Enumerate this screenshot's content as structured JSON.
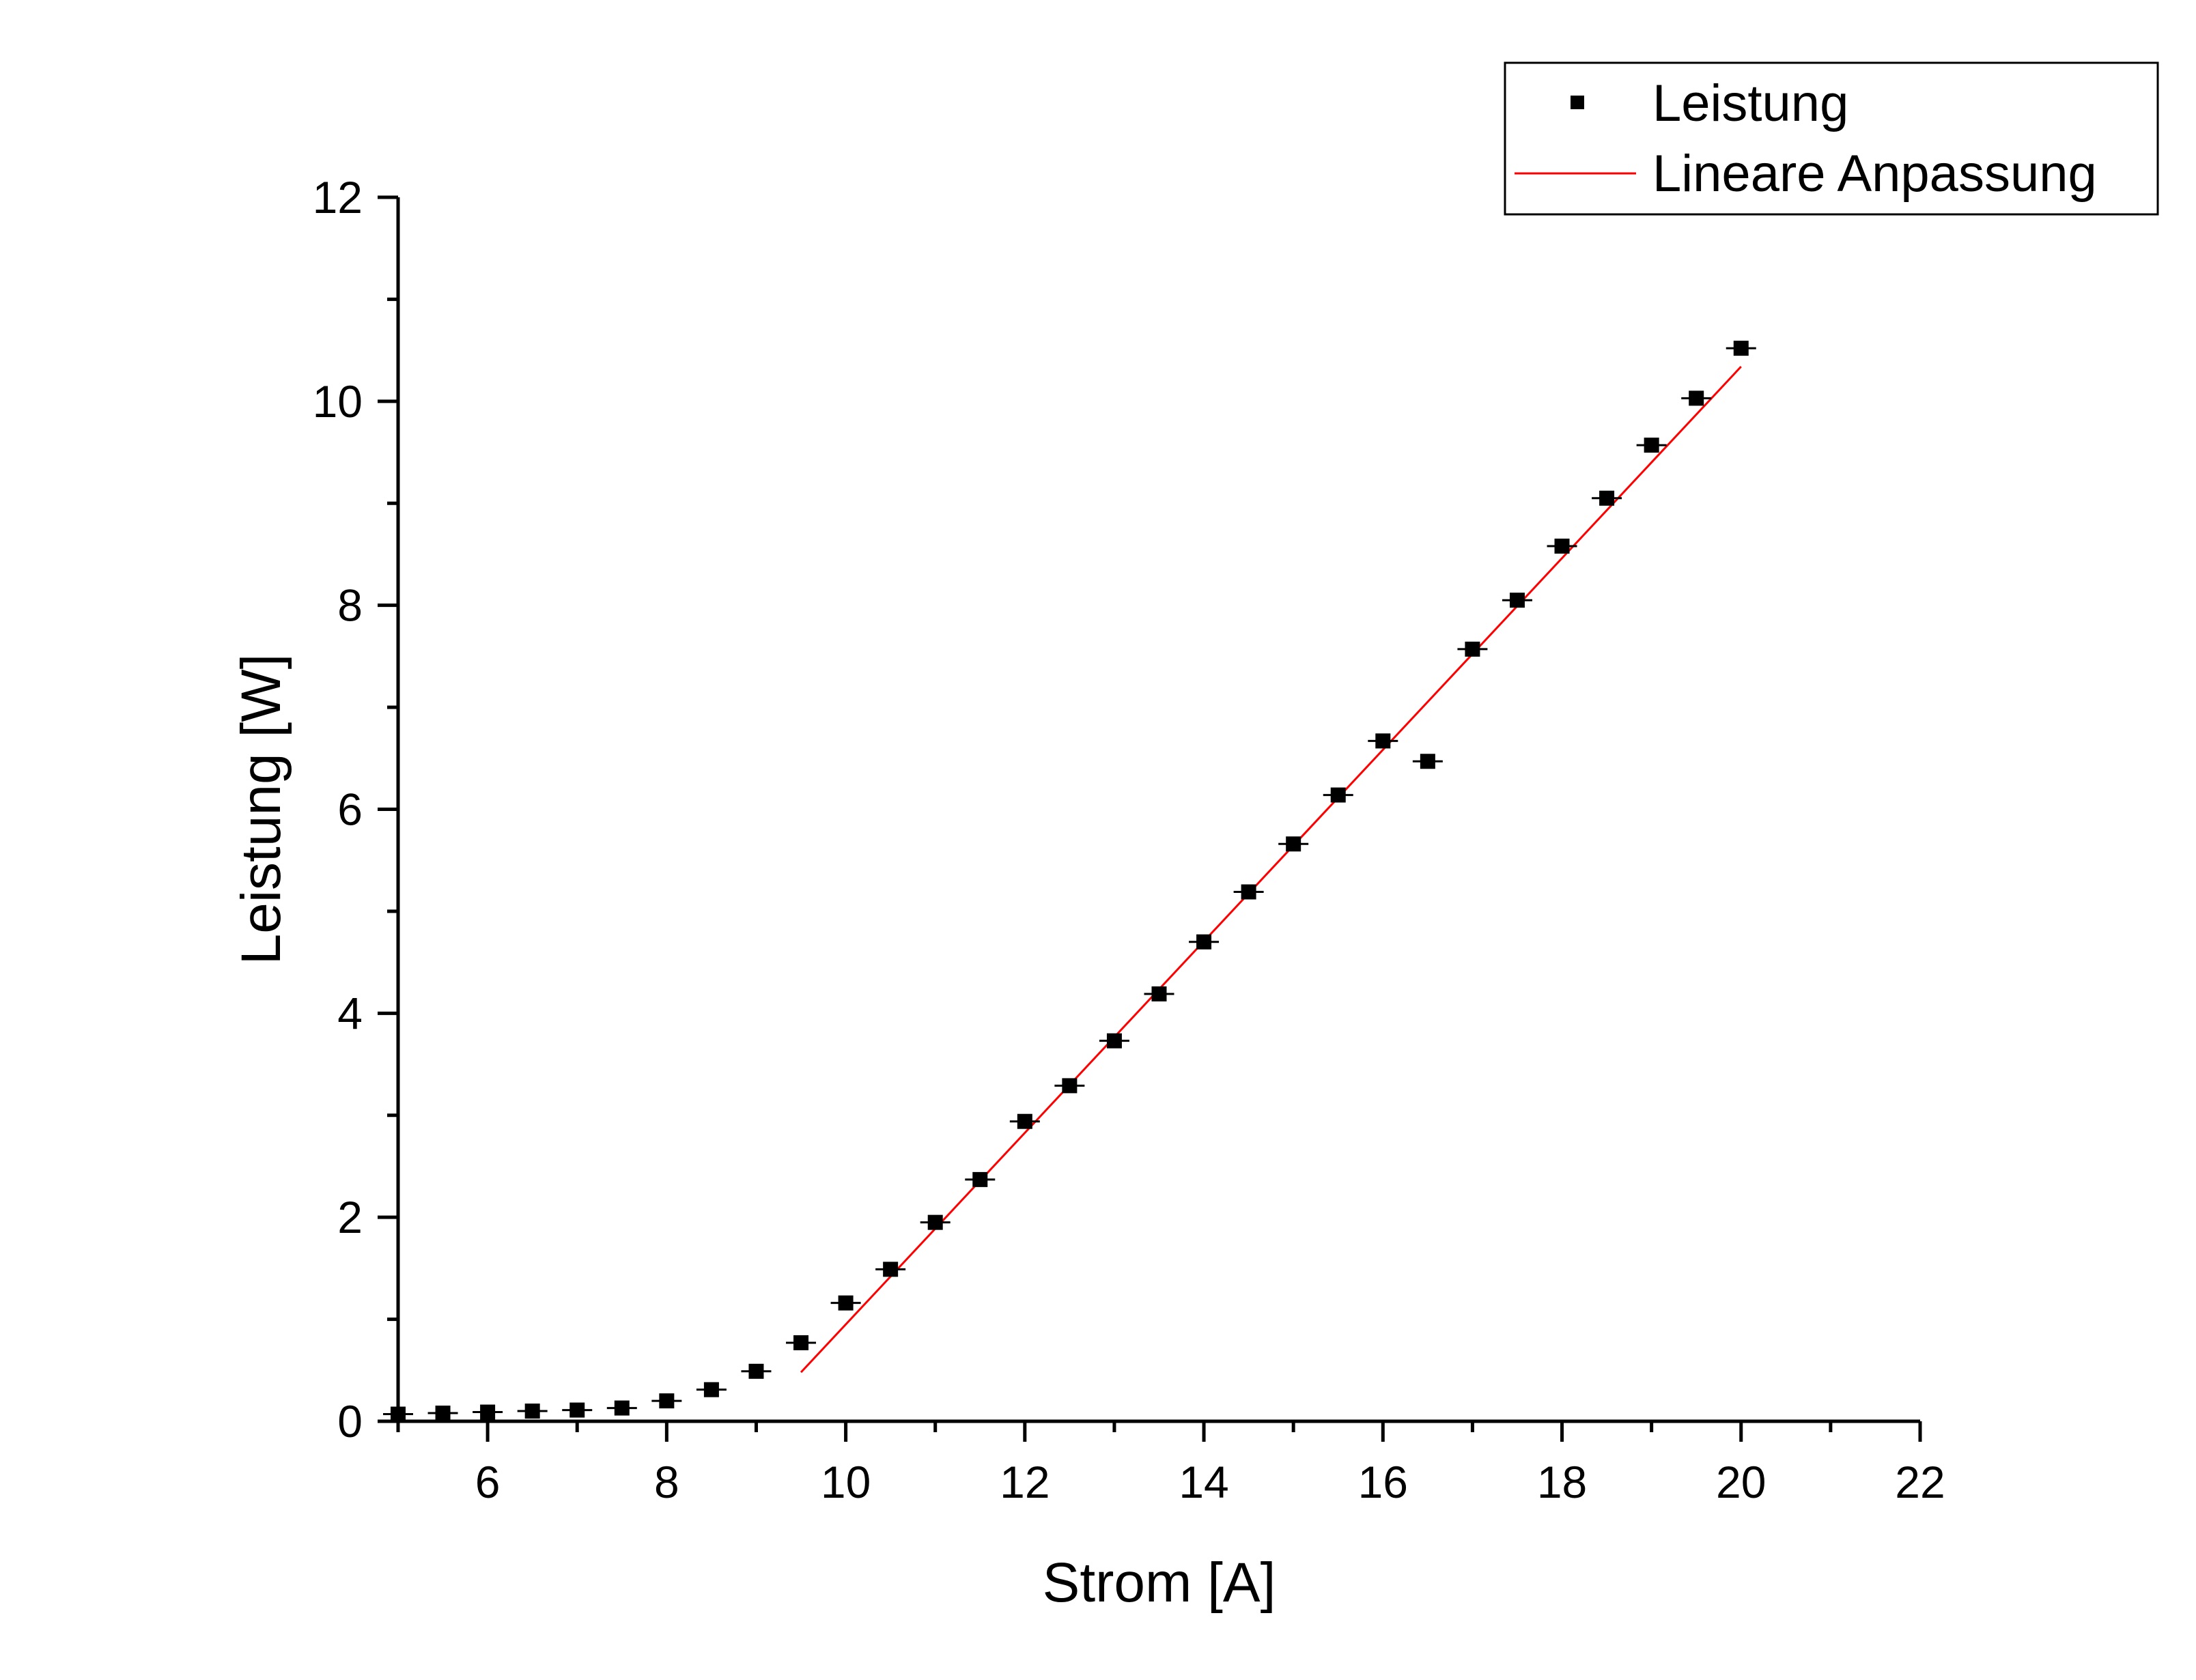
{
  "chart_data": {
    "type": "scatter",
    "title": "",
    "xlabel": "Strom [A]",
    "ylabel": "Leistung [W]",
    "xlim": [
      5,
      22
    ],
    "ylim": [
      0,
      12
    ],
    "x_ticks": [
      6,
      8,
      10,
      12,
      14,
      16,
      18,
      20,
      22
    ],
    "y_ticks": [
      0,
      2,
      4,
      6,
      8,
      10,
      12
    ],
    "grid": false,
    "legend_position": "top-right",
    "series": [
      {
        "name": "Leistung",
        "kind": "scatter",
        "marker": "square",
        "color": "#000000",
        "error_bars": "horizontal",
        "x": [
          5,
          5.5,
          6,
          6.5,
          7,
          7.5,
          8,
          8.5,
          9,
          9.5,
          10,
          10.5,
          11,
          11.5,
          12,
          12.5,
          13,
          13.5,
          14,
          14.5,
          15,
          15.5,
          16,
          16.5,
          17,
          17.5,
          18,
          18.5,
          19,
          19.5,
          20
        ],
        "y": [
          0.07,
          0.08,
          0.09,
          0.1,
          0.11,
          0.13,
          0.2,
          0.31,
          0.49,
          0.77,
          1.16,
          1.49,
          1.95,
          2.37,
          2.94,
          3.29,
          3.73,
          4.19,
          4.7,
          5.19,
          5.66,
          6.14,
          6.67,
          6.47,
          7.57,
          8.05,
          8.58,
          9.05,
          9.57,
          10.03,
          10.52
        ]
      },
      {
        "name": "Lineare Anpassung",
        "kind": "line",
        "color": "#ff0000",
        "x": [
          9.5,
          20
        ],
        "y": [
          0.48,
          10.34
        ]
      }
    ]
  }
}
